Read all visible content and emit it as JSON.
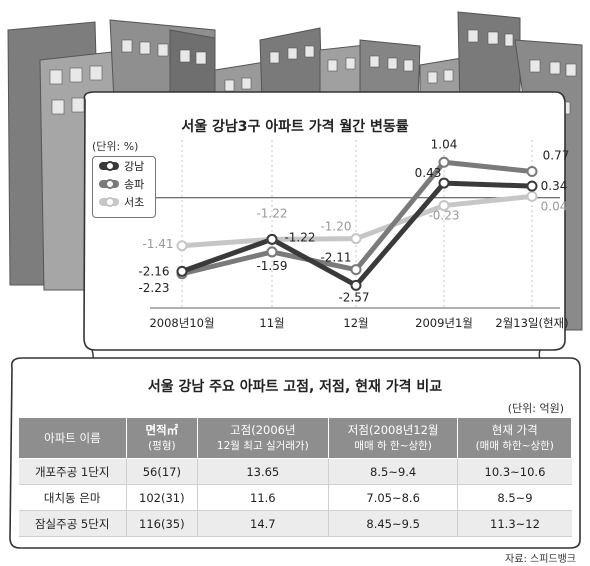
{
  "chart_data": {
    "type": "line",
    "title": "서울 강남3구 아파트 가격 월간 변동률",
    "unit_label": "(단위: %)",
    "categories": [
      "2008년10월",
      "11월",
      "12월",
      "2009년1월",
      "2월13일(현재)"
    ],
    "series": [
      {
        "name": "강남",
        "color": "#3a3a3a",
        "values": [
          -2.16,
          -1.22,
          -2.57,
          0.43,
          0.34
        ]
      },
      {
        "name": "송파",
        "color": "#7a7a7a",
        "values": [
          -2.23,
          -1.59,
          -2.11,
          1.04,
          0.77
        ]
      },
      {
        "name": "서초",
        "color": "#c6c6c6",
        "values": [
          -1.41,
          -1.22,
          -1.2,
          -0.23,
          0.04
        ]
      }
    ],
    "value_labels": {
      "강남": [
        "-2.16",
        "-1.22",
        "-2.57",
        "0.43",
        "0.34"
      ],
      "송파": [
        "-2.23",
        "-1.59",
        "-2.11",
        "1.04",
        "0.77"
      ],
      "서초": [
        "-1.41",
        "-1.22",
        "-1.20",
        "-0.23",
        "0.04"
      ]
    },
    "ylim": [
      -3.0,
      1.4
    ],
    "zero_line": true
  },
  "table": {
    "title": "서울 강남 주요 아파트 고점, 저점, 현재 가격 비교",
    "unit": "(단위: 억원)",
    "headers": [
      {
        "main": "아파트 이름",
        "sub": ""
      },
      {
        "main": "면적㎡",
        "sub": "(평형)"
      },
      {
        "main": "고점(2006년",
        "sub": "12월 최고 실거래가)"
      },
      {
        "main": "저점(2008년12월",
        "sub": "매매 하 한~상한)"
      },
      {
        "main": "현재 가격",
        "sub": "(매매 하한~상한)"
      }
    ],
    "rows": [
      [
        "개포주공 1단지",
        "56(17)",
        "13.65",
        "8.5~9.4",
        "10.3~10.6"
      ],
      [
        "대치동 은마",
        "102(31)",
        "11.6",
        "7.05~8.6",
        "8.5~9"
      ],
      [
        "잠실주공 5단지",
        "116(35)",
        "14.7",
        "8.45~9.5",
        "11.3~12"
      ]
    ]
  },
  "source": "자료: 스피드뱅크"
}
